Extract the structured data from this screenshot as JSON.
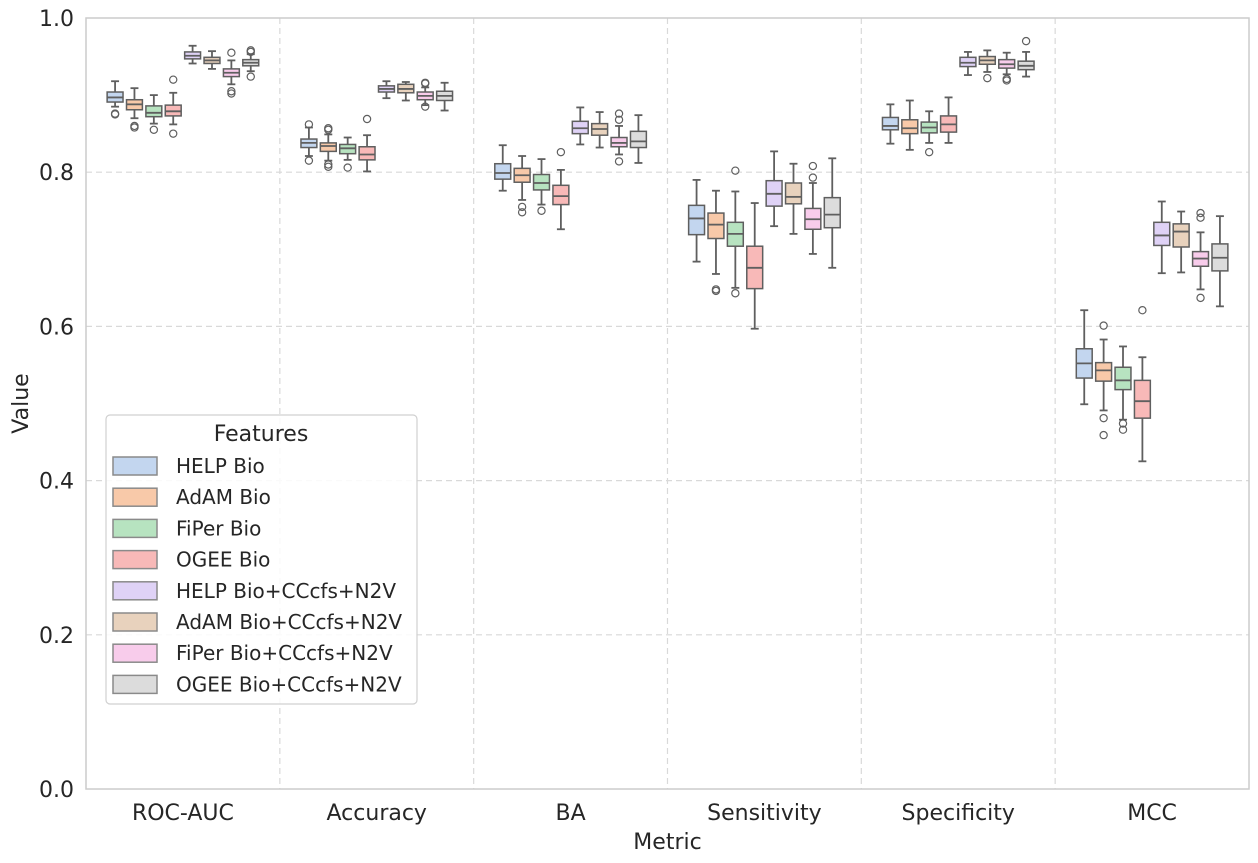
{
  "chart_data": {
    "type": "box",
    "xlabel": "Metric",
    "ylabel": "Value",
    "ylim": [
      0.0,
      1.0
    ],
    "yticks": [
      "0.0",
      "0.2",
      "0.4",
      "0.6",
      "0.8",
      "1.0"
    ],
    "grid": true,
    "legend": {
      "title": "Features",
      "placement": "lower-left"
    },
    "categories": [
      "ROC-AUC",
      "Accuracy",
      "BA",
      "Sensitivity",
      "Specificity",
      "MCC"
    ],
    "series": [
      {
        "name": "HELP Bio",
        "color": "#c3d6ef",
        "boxes": [
          {
            "whislo": 0.885,
            "q1": 0.891,
            "med": 0.897,
            "q3": 0.904,
            "whishi": 0.918,
            "fliers": [
              0.876,
              0.875
            ]
          },
          {
            "whislo": 0.821,
            "q1": 0.832,
            "med": 0.838,
            "q3": 0.843,
            "whishi": 0.858,
            "fliers": [
              0.862,
              0.815
            ]
          },
          {
            "whislo": 0.776,
            "q1": 0.791,
            "med": 0.799,
            "q3": 0.811,
            "whishi": 0.835,
            "fliers": []
          },
          {
            "whislo": 0.684,
            "q1": 0.719,
            "med": 0.74,
            "q3": 0.757,
            "whishi": 0.79,
            "fliers": []
          },
          {
            "whislo": 0.837,
            "q1": 0.855,
            "med": 0.86,
            "q3": 0.871,
            "whishi": 0.888,
            "fliers": []
          },
          {
            "whislo": 0.499,
            "q1": 0.533,
            "med": 0.552,
            "q3": 0.571,
            "whishi": 0.621,
            "fliers": []
          }
        ]
      },
      {
        "name": "AdAM Bio",
        "color": "#f8c9a9",
        "boxes": [
          {
            "whislo": 0.87,
            "q1": 0.881,
            "med": 0.888,
            "q3": 0.894,
            "whishi": 0.909,
            "fliers": [
              0.86,
              0.858
            ]
          },
          {
            "whislo": 0.815,
            "q1": 0.827,
            "med": 0.834,
            "q3": 0.838,
            "whishi": 0.849,
            "fliers": [
              0.857,
              0.855,
              0.81,
              0.807
            ]
          },
          {
            "whislo": 0.764,
            "q1": 0.787,
            "med": 0.796,
            "q3": 0.805,
            "whishi": 0.821,
            "fliers": [
              0.755,
              0.748
            ]
          },
          {
            "whislo": 0.668,
            "q1": 0.714,
            "med": 0.732,
            "q3": 0.747,
            "whishi": 0.776,
            "fliers": [
              0.648,
              0.646
            ]
          },
          {
            "whislo": 0.829,
            "q1": 0.85,
            "med": 0.857,
            "q3": 0.868,
            "whishi": 0.893,
            "fliers": []
          },
          {
            "whislo": 0.491,
            "q1": 0.529,
            "med": 0.543,
            "q3": 0.553,
            "whishi": 0.583,
            "fliers": [
              0.601,
              0.481,
              0.459
            ]
          }
        ]
      },
      {
        "name": "FiPer Bio",
        "color": "#b7e3c0",
        "boxes": [
          {
            "whislo": 0.863,
            "q1": 0.872,
            "med": 0.877,
            "q3": 0.886,
            "whishi": 0.9,
            "fliers": [
              0.855
            ]
          },
          {
            "whislo": 0.816,
            "q1": 0.824,
            "med": 0.831,
            "q3": 0.836,
            "whishi": 0.845,
            "fliers": [
              0.806
            ]
          },
          {
            "whislo": 0.758,
            "q1": 0.777,
            "med": 0.786,
            "q3": 0.797,
            "whishi": 0.817,
            "fliers": [
              0.75
            ]
          },
          {
            "whislo": 0.65,
            "q1": 0.704,
            "med": 0.72,
            "q3": 0.735,
            "whishi": 0.775,
            "fliers": [
              0.802,
              0.643
            ]
          },
          {
            "whislo": 0.838,
            "q1": 0.851,
            "med": 0.858,
            "q3": 0.865,
            "whishi": 0.879,
            "fliers": [
              0.826
            ]
          },
          {
            "whislo": 0.479,
            "q1": 0.518,
            "med": 0.53,
            "q3": 0.547,
            "whishi": 0.574,
            "fliers": [
              0.474,
              0.466
            ]
          }
        ]
      },
      {
        "name": "OGEE Bio",
        "color": "#f8b9b8",
        "boxes": [
          {
            "whislo": 0.862,
            "q1": 0.873,
            "med": 0.879,
            "q3": 0.887,
            "whishi": 0.903,
            "fliers": [
              0.92,
              0.85
            ]
          },
          {
            "whislo": 0.801,
            "q1": 0.816,
            "med": 0.823,
            "q3": 0.833,
            "whishi": 0.848,
            "fliers": [
              0.869
            ]
          },
          {
            "whislo": 0.726,
            "q1": 0.758,
            "med": 0.769,
            "q3": 0.783,
            "whishi": 0.803,
            "fliers": [
              0.826
            ]
          },
          {
            "whislo": 0.597,
            "q1": 0.649,
            "med": 0.676,
            "q3": 0.704,
            "whishi": 0.76,
            "fliers": []
          },
          {
            "whislo": 0.838,
            "q1": 0.852,
            "med": 0.862,
            "q3": 0.873,
            "whishi": 0.897,
            "fliers": []
          },
          {
            "whislo": 0.425,
            "q1": 0.481,
            "med": 0.503,
            "q3": 0.53,
            "whishi": 0.56,
            "fliers": [
              0.621
            ]
          }
        ]
      },
      {
        "name": "HELP Bio+CCcfs+N2V",
        "color": "#dfd2f6",
        "boxes": [
          {
            "whislo": 0.941,
            "q1": 0.947,
            "med": 0.951,
            "q3": 0.956,
            "whishi": 0.964,
            "fliers": []
          },
          {
            "whislo": 0.896,
            "q1": 0.904,
            "med": 0.908,
            "q3": 0.912,
            "whishi": 0.918,
            "fliers": []
          },
          {
            "whislo": 0.836,
            "q1": 0.85,
            "med": 0.857,
            "q3": 0.866,
            "whishi": 0.884,
            "fliers": []
          },
          {
            "whislo": 0.73,
            "q1": 0.756,
            "med": 0.772,
            "q3": 0.789,
            "whishi": 0.827,
            "fliers": []
          },
          {
            "whislo": 0.926,
            "q1": 0.937,
            "med": 0.942,
            "q3": 0.949,
            "whishi": 0.956,
            "fliers": []
          },
          {
            "whislo": 0.669,
            "q1": 0.705,
            "med": 0.718,
            "q3": 0.735,
            "whishi": 0.762,
            "fliers": []
          }
        ]
      },
      {
        "name": "AdAM Bio+CCcfs+N2V",
        "color": "#e8d2bd",
        "boxes": [
          {
            "whislo": 0.934,
            "q1": 0.941,
            "med": 0.945,
            "q3": 0.949,
            "whishi": 0.957,
            "fliers": []
          },
          {
            "whislo": 0.893,
            "q1": 0.903,
            "med": 0.908,
            "q3": 0.914,
            "whishi": 0.917,
            "fliers": []
          },
          {
            "whislo": 0.832,
            "q1": 0.848,
            "med": 0.856,
            "q3": 0.863,
            "whishi": 0.878,
            "fliers": []
          },
          {
            "whislo": 0.72,
            "q1": 0.759,
            "med": 0.768,
            "q3": 0.786,
            "whishi": 0.811,
            "fliers": []
          },
          {
            "whislo": 0.93,
            "q1": 0.94,
            "med": 0.945,
            "q3": 0.95,
            "whishi": 0.958,
            "fliers": [
              0.922
            ]
          },
          {
            "whislo": 0.67,
            "q1": 0.703,
            "med": 0.723,
            "q3": 0.733,
            "whishi": 0.749,
            "fliers": []
          }
        ]
      },
      {
        "name": "FiPer Bio+CCcfs+N2V",
        "color": "#f8cceb",
        "boxes": [
          {
            "whislo": 0.914,
            "q1": 0.924,
            "med": 0.929,
            "q3": 0.934,
            "whishi": 0.945,
            "fliers": [
              0.955,
              0.905,
              0.902
            ]
          },
          {
            "whislo": 0.887,
            "q1": 0.894,
            "med": 0.899,
            "q3": 0.904,
            "whishi": 0.91,
            "fliers": [
              0.916,
              0.915,
              0.885
            ]
          },
          {
            "whislo": 0.823,
            "q1": 0.833,
            "med": 0.838,
            "q3": 0.845,
            "whishi": 0.86,
            "fliers": [
              0.876,
              0.868,
              0.814
            ]
          },
          {
            "whislo": 0.694,
            "q1": 0.726,
            "med": 0.739,
            "q3": 0.753,
            "whishi": 0.786,
            "fliers": [
              0.808,
              0.793
            ]
          },
          {
            "whislo": 0.927,
            "q1": 0.935,
            "med": 0.94,
            "q3": 0.946,
            "whishi": 0.955,
            "fliers": [
              0.921,
              0.919
            ]
          },
          {
            "whislo": 0.648,
            "q1": 0.678,
            "med": 0.688,
            "q3": 0.697,
            "whishi": 0.722,
            "fliers": [
              0.747,
              0.741,
              0.637
            ]
          }
        ]
      },
      {
        "name": "OGEE Bio+CCcfs+N2V",
        "color": "#dcdcdc",
        "boxes": [
          {
            "whislo": 0.931,
            "q1": 0.938,
            "med": 0.942,
            "q3": 0.946,
            "whishi": 0.953,
            "fliers": [
              0.958,
              0.956,
              0.924
            ]
          },
          {
            "whislo": 0.88,
            "q1": 0.893,
            "med": 0.899,
            "q3": 0.905,
            "whishi": 0.916,
            "fliers": []
          },
          {
            "whislo": 0.812,
            "q1": 0.832,
            "med": 0.84,
            "q3": 0.853,
            "whishi": 0.874,
            "fliers": []
          },
          {
            "whislo": 0.676,
            "q1": 0.728,
            "med": 0.745,
            "q3": 0.767,
            "whishi": 0.818,
            "fliers": []
          },
          {
            "whislo": 0.924,
            "q1": 0.933,
            "med": 0.938,
            "q3": 0.944,
            "whishi": 0.956,
            "fliers": [
              0.97
            ]
          },
          {
            "whislo": 0.626,
            "q1": 0.672,
            "med": 0.689,
            "q3": 0.707,
            "whishi": 0.743,
            "fliers": []
          }
        ]
      }
    ]
  }
}
